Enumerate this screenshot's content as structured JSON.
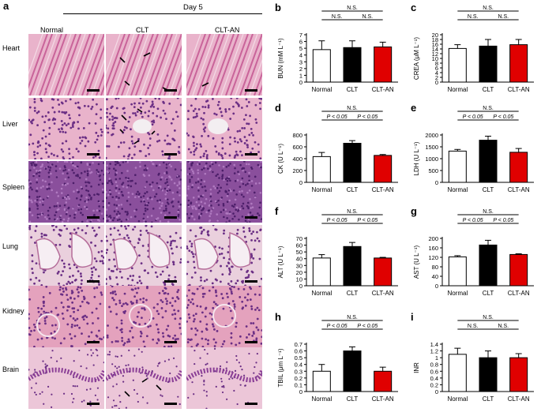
{
  "figure": {
    "panel_a_label": "a",
    "timepoint": "Day 5",
    "groups": [
      "Normal",
      "CLT",
      "CLT-AN"
    ],
    "organs": [
      "Heart",
      "Liver",
      "Spleen",
      "Lung",
      "Kidney",
      "Brain"
    ],
    "colors": {
      "normal": "#ffffff",
      "clt": "#000000",
      "cltan": "#e00000",
      "he_pink": "#e7a9c4",
      "he_purple": "#7a3f8c"
    }
  },
  "chart_data": [
    {
      "panel": "b",
      "type": "bar",
      "ylabel": "BUN (mM L⁻¹)",
      "ylim": [
        0,
        7
      ],
      "ticks": [
        0,
        1,
        2,
        3,
        4,
        5,
        6,
        7
      ],
      "categories": [
        "Normal",
        "CLT",
        "CLT-AN"
      ],
      "values": [
        4.8,
        5.1,
        5.2
      ],
      "errors": [
        1.3,
        1.0,
        0.7
      ],
      "sig": [
        {
          "from": 0,
          "to": 2,
          "label": "N.S."
        },
        {
          "from": 0,
          "to": 1,
          "label": "N.S."
        },
        {
          "from": 1,
          "to": 2,
          "label": "N.S."
        }
      ]
    },
    {
      "panel": "c",
      "type": "bar",
      "ylabel": "CREA (μM L⁻¹)",
      "ylim": [
        0,
        20
      ],
      "ticks": [
        0,
        2,
        4,
        6,
        8,
        10,
        12,
        14,
        16,
        18,
        20
      ],
      "categories": [
        "Normal",
        "CLT",
        "CLT-AN"
      ],
      "values": [
        14.2,
        15.2,
        15.8
      ],
      "errors": [
        1.6,
        2.8,
        2.2
      ],
      "sig": [
        {
          "from": 0,
          "to": 2,
          "label": "N.S."
        },
        {
          "from": 0,
          "to": 1,
          "label": "N.S."
        },
        {
          "from": 1,
          "to": 2,
          "label": "N.S."
        }
      ]
    },
    {
      "panel": "d",
      "type": "bar",
      "ylabel": "CK (U L⁻¹)",
      "ylim": [
        0,
        800
      ],
      "ticks": [
        0,
        200,
        400,
        600,
        800
      ],
      "categories": [
        "Normal",
        "CLT",
        "CLT-AN"
      ],
      "values": [
        435,
        660,
        455
      ],
      "errors": [
        70,
        45,
        15
      ],
      "sig": [
        {
          "from": 0,
          "to": 2,
          "label": "N.S."
        },
        {
          "from": 0,
          "to": 1,
          "label": "P < 0.05"
        },
        {
          "from": 1,
          "to": 2,
          "label": "P < 0.05"
        }
      ]
    },
    {
      "panel": "e",
      "type": "bar",
      "ylabel": "LDH (U L⁻¹)",
      "ylim": [
        0,
        2000
      ],
      "ticks": [
        0,
        500,
        1000,
        1500,
        2000
      ],
      "categories": [
        "Normal",
        "CLT",
        "CLT-AN"
      ],
      "values": [
        1320,
        1780,
        1270
      ],
      "errors": [
        70,
        170,
        160
      ],
      "sig": [
        {
          "from": 0,
          "to": 2,
          "label": "N.S."
        },
        {
          "from": 0,
          "to": 1,
          "label": "P < 0.05"
        },
        {
          "from": 1,
          "to": 2,
          "label": "P < 0.05"
        }
      ]
    },
    {
      "panel": "f",
      "type": "bar",
      "ylabel": "ALT (U L⁻¹)",
      "ylim": [
        0,
        70
      ],
      "ticks": [
        0,
        10,
        20,
        30,
        40,
        50,
        60,
        70
      ],
      "categories": [
        "Normal",
        "CLT",
        "CLT-AN"
      ],
      "values": [
        41,
        58,
        41
      ],
      "errors": [
        5,
        6,
        1
      ],
      "sig": [
        {
          "from": 0,
          "to": 2,
          "label": "N.S."
        },
        {
          "from": 0,
          "to": 1,
          "label": "P < 0.05"
        },
        {
          "from": 1,
          "to": 2,
          "label": "P < 0.05"
        }
      ]
    },
    {
      "panel": "g",
      "type": "bar",
      "ylabel": "AST (U L⁻¹)",
      "ylim": [
        0,
        200
      ],
      "ticks": [
        0,
        40,
        80,
        120,
        160,
        200
      ],
      "categories": [
        "Normal",
        "CLT",
        "CLT-AN"
      ],
      "values": [
        122,
        172,
        132
      ],
      "errors": [
        5,
        20,
        3
      ],
      "sig": [
        {
          "from": 0,
          "to": 2,
          "label": "N.S."
        },
        {
          "from": 0,
          "to": 1,
          "label": "P < 0.05"
        },
        {
          "from": 1,
          "to": 2,
          "label": "P < 0.05"
        }
      ]
    },
    {
      "panel": "h",
      "type": "bar",
      "ylabel": "TBIL (μm L⁻¹)",
      "ylim": [
        0,
        0.7
      ],
      "ticks": [
        0,
        0.1,
        0.2,
        0.3,
        0.4,
        0.5,
        0.6,
        0.7
      ],
      "categories": [
        "Normal",
        "CLT",
        "CLT-AN"
      ],
      "values": [
        0.3,
        0.6,
        0.3
      ],
      "errors": [
        0.1,
        0.06,
        0.06
      ],
      "sig": [
        {
          "from": 0,
          "to": 2,
          "label": "N.S."
        },
        {
          "from": 0,
          "to": 1,
          "label": "P < 0.05"
        },
        {
          "from": 1,
          "to": 2,
          "label": "P < 0.05"
        }
      ]
    },
    {
      "panel": "i",
      "type": "bar",
      "ylabel": "INR",
      "ylim": [
        0,
        1.4
      ],
      "ticks": [
        0,
        0.2,
        0.4,
        0.6,
        0.8,
        1.0,
        1.2,
        1.4
      ],
      "categories": [
        "Normal",
        "CLT",
        "CLT-AN"
      ],
      "values": [
        1.1,
        1.0,
        1.0
      ],
      "errors": [
        0.18,
        0.2,
        0.12
      ],
      "sig": [
        {
          "from": 0,
          "to": 2,
          "label": "N.S."
        },
        {
          "from": 0,
          "to": 1,
          "label": "N.S."
        },
        {
          "from": 1,
          "to": 2,
          "label": "N.S."
        }
      ]
    }
  ]
}
